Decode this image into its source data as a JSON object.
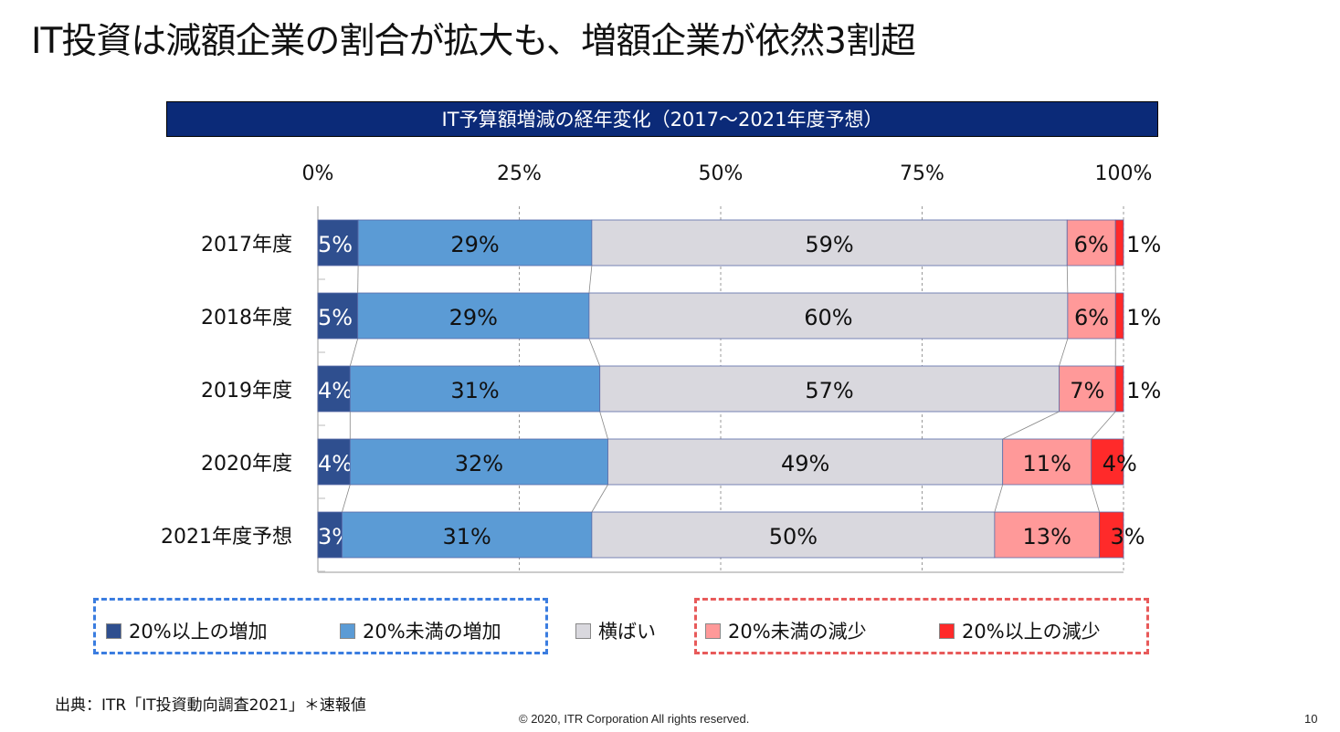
{
  "slide": {
    "title": "IT投資は減額企業の割合が拡大も、増額企業が依然3割超",
    "source": "出典：ITR「IT投資動向調査2021」＊速報値",
    "copyright": "© 2020, ITR Corporation  All rights reserved.",
    "page_number": "10"
  },
  "chart_data": {
    "type": "bar",
    "orientation": "horizontal",
    "stacked": "100%",
    "title": "IT予算額増減の経年変化（2017～2021年度予想）",
    "categories": [
      "2017年度",
      "2018年度",
      "2019年度",
      "2020年度",
      "2021年度予想"
    ],
    "xlim": [
      0,
      100
    ],
    "xticks": [
      "0%",
      "25%",
      "50%",
      "75%",
      "100%"
    ],
    "grid": true,
    "legend_position": "bottom",
    "series": [
      {
        "name": "20%以上の増加",
        "color": "#2f4f8f",
        "values": [
          5,
          5,
          4,
          4,
          3
        ]
      },
      {
        "name": "20%未満の増加",
        "color": "#5b9bd5",
        "values": [
          29,
          29,
          31,
          32,
          31
        ]
      },
      {
        "name": "横ばい",
        "color": "#d9d8de",
        "values": [
          59,
          60,
          57,
          49,
          50
        ]
      },
      {
        "name": "20%未満の減少",
        "color": "#ff9999",
        "values": [
          6,
          6,
          7,
          11,
          13
        ]
      },
      {
        "name": "20%以上の減少",
        "color": "#ff2a2a",
        "values": [
          1,
          1,
          1,
          4,
          3
        ]
      }
    ],
    "legend_groups": [
      {
        "series": [
          0,
          1
        ],
        "border_color": "#3b7de0"
      },
      {
        "series": [
          3,
          4
        ],
        "border_color": "#e85a5a"
      }
    ]
  }
}
